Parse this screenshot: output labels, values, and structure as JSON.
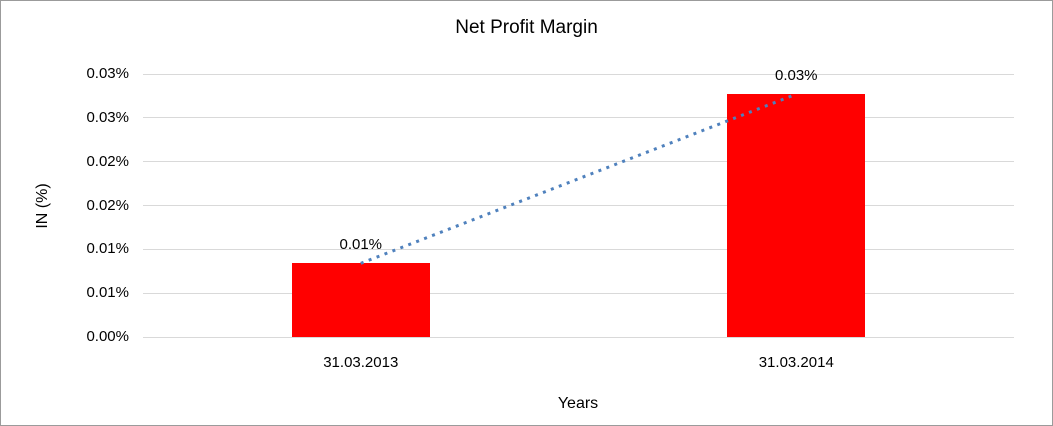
{
  "chart_data": {
    "type": "bar",
    "title": "Net Profit Margin",
    "xlabel": "Years",
    "ylabel": "IN (%)",
    "categories": [
      "31.03.2013",
      "31.03.2014"
    ],
    "values_pct": [
      0.0084,
      0.0277
    ],
    "data_labels": [
      "0.01%",
      "0.03%"
    ],
    "y_ticks": [
      {
        "value": 0.0,
        "label": "0.00%"
      },
      {
        "value": 0.005,
        "label": "0.01%"
      },
      {
        "value": 0.01,
        "label": "0.01%"
      },
      {
        "value": 0.015,
        "label": "0.02%"
      },
      {
        "value": 0.02,
        "label": "0.02%"
      },
      {
        "value": 0.025,
        "label": "0.03%"
      },
      {
        "value": 0.03,
        "label": "0.03%"
      }
    ],
    "ylim": [
      0,
      0.03
    ],
    "grid": true,
    "legend": false,
    "trendline": {
      "style": "dotted",
      "from_category": 0,
      "to_category": 1
    },
    "colors": {
      "bar": "#ff0000",
      "trendline": "#4f81bd",
      "gridline": "#d9d9d9",
      "text": "#000000",
      "background": "#ffffff",
      "frame_border": "#9b9b9b"
    }
  }
}
